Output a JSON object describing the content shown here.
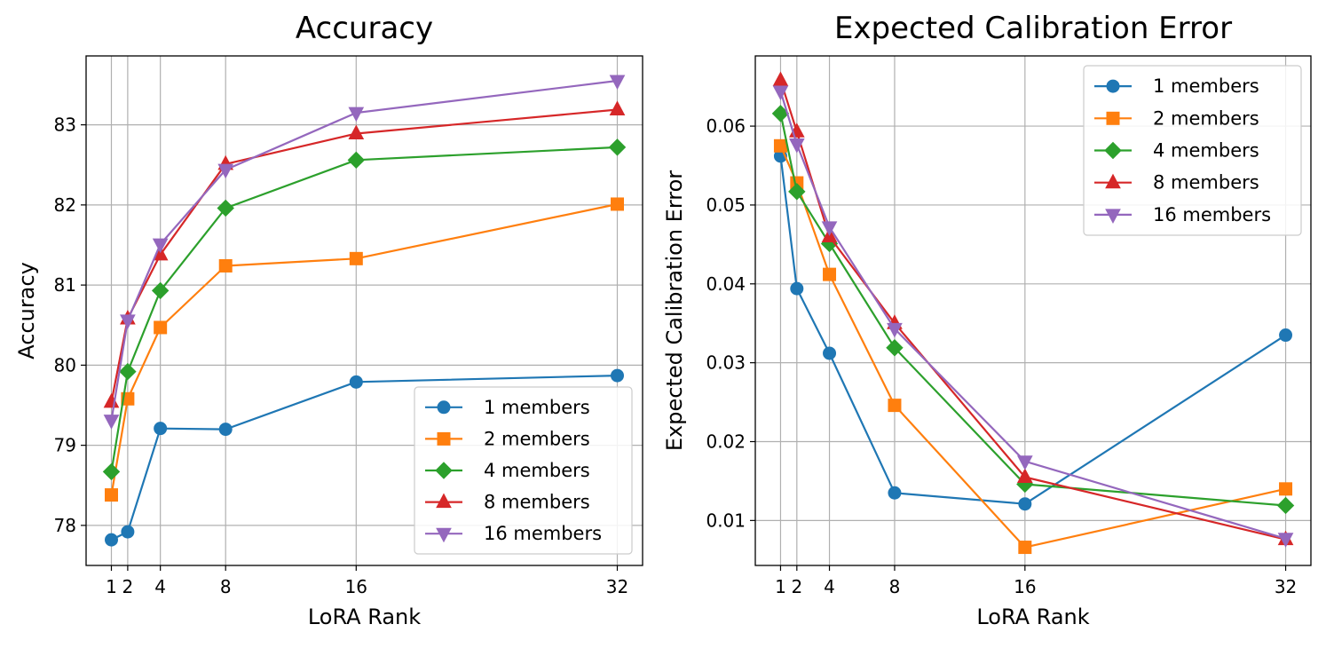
{
  "figure": {
    "colors": {
      "blue": "#1f77b4",
      "orange": "#ff7f0e",
      "green": "#2ca02c",
      "red": "#d62728",
      "purple": "#9467bd",
      "grid": "#b0b0b0",
      "axis": "#000000"
    }
  },
  "chart_data": [
    {
      "type": "line",
      "title": "Accuracy",
      "xlabel": "LoRA Rank",
      "ylabel": "Accuracy",
      "x": [
        1,
        2,
        4,
        8,
        16,
        32
      ],
      "xticks": [
        1,
        2,
        4,
        8,
        16,
        32
      ],
      "xtick_labels": [
        "1",
        "2",
        "4",
        "8",
        "16",
        "32"
      ],
      "yticks": [
        78,
        79,
        80,
        81,
        82,
        83
      ],
      "ytick_labels": [
        "78",
        "79",
        "80",
        "81",
        "82",
        "83"
      ],
      "xlim": [
        -0.55,
        33.55
      ],
      "ylim": [
        77.5,
        83.86
      ],
      "grid": true,
      "legend_loc": "lower-right",
      "series": [
        {
          "name": "1 members",
          "color": "#1f77b4",
          "marker": "circle",
          "values": [
            77.82,
            77.92,
            79.21,
            79.2,
            79.79,
            79.87
          ]
        },
        {
          "name": "2 members",
          "color": "#ff7f0e",
          "marker": "square",
          "values": [
            78.38,
            79.58,
            80.47,
            81.24,
            81.33,
            82.01
          ]
        },
        {
          "name": "4 members",
          "color": "#2ca02c",
          "marker": "diamond",
          "values": [
            78.67,
            79.92,
            80.93,
            81.96,
            82.56,
            82.72
          ]
        },
        {
          "name": "8 members",
          "color": "#d62728",
          "marker": "triangle-up",
          "values": [
            79.54,
            80.58,
            81.38,
            82.51,
            82.89,
            83.19
          ]
        },
        {
          "name": "16 members",
          "color": "#9467bd",
          "marker": "triangle-down",
          "values": [
            79.31,
            80.56,
            81.51,
            82.44,
            83.15,
            83.55
          ]
        }
      ]
    },
    {
      "type": "line",
      "title": "Expected Calibration Error",
      "xlabel": "LoRA Rank",
      "ylabel": "Expected Calibration Error",
      "x": [
        1,
        2,
        4,
        8,
        16,
        32
      ],
      "xticks": [
        1,
        2,
        4,
        8,
        16,
        32
      ],
      "xtick_labels": [
        "1",
        "2",
        "4",
        "8",
        "16",
        "32"
      ],
      "yticks": [
        0.01,
        0.02,
        0.03,
        0.04,
        0.05,
        0.06
      ],
      "ytick_labels": [
        "0.01",
        "0.02",
        "0.03",
        "0.04",
        "0.05",
        "0.06"
      ],
      "xlim": [
        -0.55,
        33.55
      ],
      "ylim": [
        0.0043,
        0.0689
      ],
      "grid": true,
      "legend_loc": "upper-right",
      "series": [
        {
          "name": "1 members",
          "color": "#1f77b4",
          "marker": "circle",
          "values": [
            0.0562,
            0.0394,
            0.0312,
            0.0135,
            0.0121,
            0.0335
          ]
        },
        {
          "name": "2 members",
          "color": "#ff7f0e",
          "marker": "square",
          "values": [
            0.0575,
            0.0528,
            0.0412,
            0.0246,
            0.0066,
            0.014
          ]
        },
        {
          "name": "4 members",
          "color": "#2ca02c",
          "marker": "diamond",
          "values": [
            0.0616,
            0.0517,
            0.0451,
            0.0319,
            0.0146,
            0.0119
          ]
        },
        {
          "name": "8 members",
          "color": "#d62728",
          "marker": "triangle-up",
          "values": [
            0.0658,
            0.0593,
            0.046,
            0.035,
            0.0155,
            0.0076
          ]
        },
        {
          "name": "16 members",
          "color": "#9467bd",
          "marker": "triangle-down",
          "values": [
            0.0644,
            0.0577,
            0.0472,
            0.0343,
            0.0175,
            0.0077
          ]
        }
      ]
    }
  ]
}
